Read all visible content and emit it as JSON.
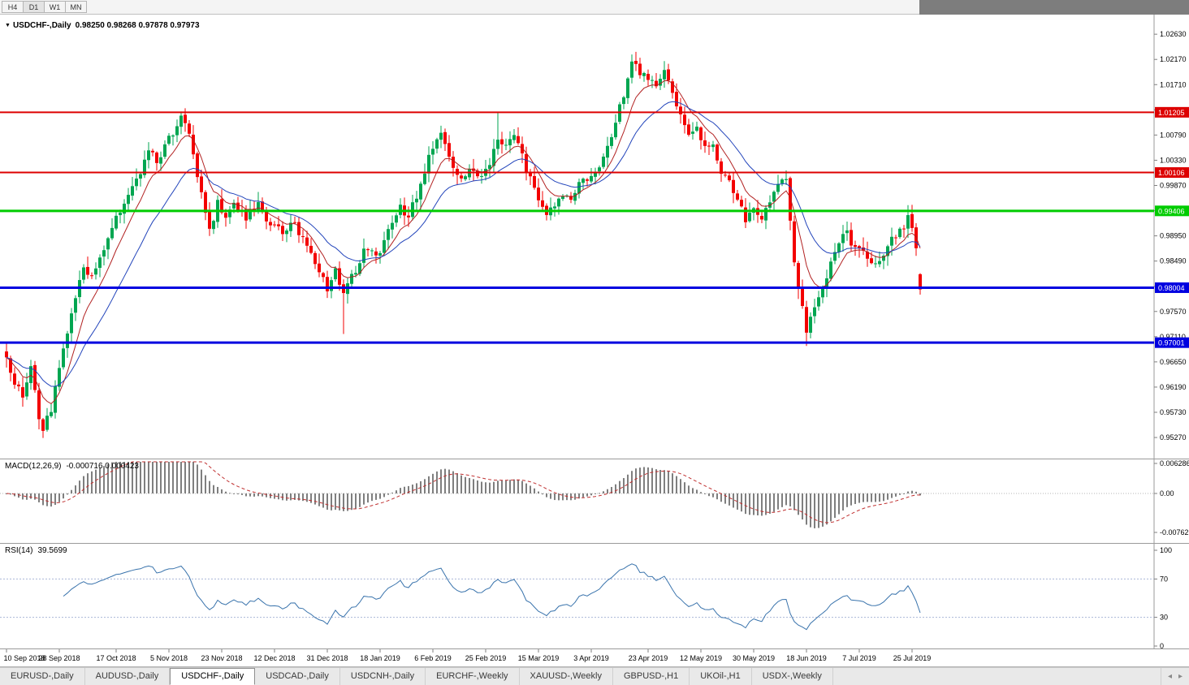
{
  "toolbar": {
    "periods": [
      "H4",
      "D1",
      "W1",
      "MN"
    ],
    "active": "D1"
  },
  "chart": {
    "symbol_title": "USDCHF-,Daily",
    "quote_text": "0.98250 0.98268 0.97878 0.97973"
  },
  "chart_data": {
    "type": "candlestick",
    "title": "USDCHF-,Daily",
    "last_candle": {
      "open": 0.9825,
      "high": 0.98268,
      "low": 0.97878,
      "close": 0.97973
    },
    "levels": [
      {
        "price": 1.01205,
        "label": "1.01205",
        "color": "#dd0000",
        "width": 2
      },
      {
        "price": 1.00106,
        "label": "1.00106",
        "color": "#dd0000",
        "width": 2
      },
      {
        "price": 0.99406,
        "label": "0.99406",
        "color": "#00cc00",
        "width": 3
      },
      {
        "price": 0.98004,
        "label": "0.98004",
        "color": "#0000e0",
        "width": 3
      },
      {
        "price": 0.97001,
        "label": "0.97001",
        "color": "#0000e0",
        "width": 3
      }
    ],
    "price_axis": {
      "top_label": 1.0263,
      "step": 0.0046,
      "label_count": 17,
      "p_top": 1.0281,
      "p_bottom": 0.9493
    },
    "candle_count": 226,
    "price_path": [
      [
        0,
        0.968
      ],
      [
        2,
        0.9625
      ],
      [
        4,
        0.96
      ],
      [
        6,
        0.9655
      ],
      [
        8,
        0.956
      ],
      [
        9,
        0.954
      ],
      [
        11,
        0.958
      ],
      [
        14,
        0.969
      ],
      [
        17,
        0.978
      ],
      [
        19,
        0.9845
      ],
      [
        21,
        0.9815
      ],
      [
        24,
        0.987
      ],
      [
        27,
        0.9925
      ],
      [
        29,
        0.9955
      ],
      [
        31,
        0.9985
      ],
      [
        33,
        1.001
      ],
      [
        35,
        1.0055
      ],
      [
        37,
        1.0025
      ],
      [
        39,
        1.006
      ],
      [
        41,
        1.008
      ],
      [
        43,
        1.011
      ],
      [
        45,
        1.0085
      ],
      [
        47,
        1.0005
      ],
      [
        49,
        0.994
      ],
      [
        50,
        0.9905
      ],
      [
        52,
        0.9955
      ],
      [
        54,
        0.9935
      ],
      [
        56,
        0.995
      ],
      [
        59,
        0.993
      ],
      [
        62,
        0.995
      ],
      [
        65,
        0.9915
      ],
      [
        68,
        0.99
      ],
      [
        71,
        0.992
      ],
      [
        74,
        0.987
      ],
      [
        77,
        0.983
      ],
      [
        79,
        0.98
      ],
      [
        81,
        0.983
      ],
      [
        83,
        0.9785
      ],
      [
        85,
        0.982
      ],
      [
        88,
        0.9865
      ],
      [
        91,
        0.986
      ],
      [
        93,
        0.988
      ],
      [
        95,
        0.992
      ],
      [
        97,
        0.995
      ],
      [
        99,
        0.993
      ],
      [
        101,
        0.997
      ],
      [
        103,
        1.001
      ],
      [
        105,
        1.006
      ],
      [
        107,
        1.0082
      ],
      [
        109,
        1.004
      ],
      [
        111,
        1.001
      ],
      [
        113,
        1.0
      ],
      [
        115,
        1.002
      ],
      [
        117,
        1.0
      ],
      [
        119,
        1.003
      ],
      [
        121,
        1.0078
      ],
      [
        123,
        1.0058
      ],
      [
        125,
        1.0078
      ],
      [
        127,
        1.004
      ],
      [
        129,
        1.0
      ],
      [
        131,
        0.996
      ],
      [
        133,
        0.993
      ],
      [
        135,
        0.995
      ],
      [
        137,
        0.9968
      ],
      [
        139,
        0.9958
      ],
      [
        141,
        1.0
      ],
      [
        143,
        0.999
      ],
      [
        145,
        1.001
      ],
      [
        147,
        1.004
      ],
      [
        149,
        1.0078
      ],
      [
        151,
        1.0128
      ],
      [
        153,
        1.018
      ],
      [
        154,
        1.0215
      ],
      [
        156,
        1.0195
      ],
      [
        158,
        1.0185
      ],
      [
        160,
        1.017
      ],
      [
        162,
        1.0205
      ],
      [
        164,
        1.016
      ],
      [
        166,
        1.011
      ],
      [
        168,
        1.0085
      ],
      [
        170,
        1.009
      ],
      [
        172,
        1.0055
      ],
      [
        174,
        1.006
      ],
      [
        176,
        1.0015
      ],
      [
        178,
        0.9995
      ],
      [
        180,
        0.9962
      ],
      [
        182,
        0.9925
      ],
      [
        184,
        0.995
      ],
      [
        186,
        0.993
      ],
      [
        188,
        0.9958
      ],
      [
        190,
        0.9988
      ],
      [
        192,
        1.0005
      ],
      [
        193,
        0.992
      ],
      [
        194,
        0.985
      ],
      [
        195,
        0.98
      ],
      [
        196,
        0.976
      ],
      [
        197,
        0.9725
      ],
      [
        198,
        0.9745
      ],
      [
        199,
        0.9762
      ],
      [
        201,
        0.98
      ],
      [
        203,
        0.985
      ],
      [
        205,
        0.9888
      ],
      [
        207,
        0.9898
      ],
      [
        209,
        0.9872
      ],
      [
        211,
        0.9862
      ],
      [
        213,
        0.9842
      ],
      [
        215,
        0.9852
      ],
      [
        217,
        0.9878
      ],
      [
        219,
        0.9898
      ],
      [
        221,
        0.9908
      ],
      [
        222,
        0.9928
      ],
      [
        223,
        0.9905
      ],
      [
        224,
        0.9868
      ],
      [
        225,
        0.9797
      ]
    ],
    "wick_events": [
      {
        "i": 9,
        "low": 0.9528
      },
      {
        "i": 43,
        "high": 1.0122
      },
      {
        "i": 83,
        "low": 0.9716
      },
      {
        "i": 121,
        "high": 1.012
      },
      {
        "i": 154,
        "high": 1.0226
      },
      {
        "i": 162,
        "high": 1.0214
      },
      {
        "i": 192,
        "high": 1.0012
      },
      {
        "i": 197,
        "low": 0.9694
      },
      {
        "i": 222,
        "high": 0.994
      }
    ],
    "date_ticks": [
      {
        "i": 0,
        "label": "10 Sep 2018"
      },
      {
        "i": 13,
        "label": "28 Sep 2018"
      },
      {
        "i": 27,
        "label": "17 Oct 2018"
      },
      {
        "i": 40,
        "label": "5 Nov 2018"
      },
      {
        "i": 53,
        "label": "23 Nov 2018"
      },
      {
        "i": 66,
        "label": "12 Dec 2018"
      },
      {
        "i": 79,
        "label": "31 Dec 2018"
      },
      {
        "i": 92,
        "label": "18 Jan 2019"
      },
      {
        "i": 105,
        "label": "6 Feb 2019"
      },
      {
        "i": 118,
        "label": "25 Feb 2019"
      },
      {
        "i": 131,
        "label": "15 Mar 2019"
      },
      {
        "i": 144,
        "label": "3 Apr 2019"
      },
      {
        "i": 158,
        "label": "23 Apr 2019"
      },
      {
        "i": 171,
        "label": "12 May 2019"
      },
      {
        "i": 184,
        "label": "30 May 2019"
      },
      {
        "i": 197,
        "label": "18 Jun 2019"
      },
      {
        "i": 210,
        "label": "7 Jul 2019"
      },
      {
        "i": 223,
        "label": "25 Jul 2019"
      }
    ],
    "moving_averages": [
      {
        "period": 8,
        "color": "#b22222"
      },
      {
        "period": 20,
        "color": "#2244bb"
      }
    ]
  },
  "macd": {
    "label": "MACD(12,26,9)",
    "values_text": "-0.000716 0.000423",
    "axis_labels": [
      "0.006286",
      "0.00",
      "-0.00762"
    ],
    "params": [
      12,
      26,
      9
    ]
  },
  "rsi": {
    "label": "RSI(14)",
    "value_text": "39.5699",
    "axis_labels": [
      "100",
      "70",
      "30",
      "0"
    ],
    "levels": [
      70,
      30
    ],
    "period": 14
  },
  "tabs": {
    "items": [
      "EURUSD-,Daily",
      "AUDUSD-,Daily",
      "USDCHF-,Daily",
      "USDCAD-,Daily",
      "USDCNH-,Daily",
      "EURCHF-,Weekly",
      "XAUUSD-,Weekly",
      "GBPUSD-,H1",
      "UKOil-,H1",
      "USDX-,Weekly"
    ],
    "active": "USDCHF-,Daily"
  },
  "icons": {
    "dropdown": "▼",
    "tab_prev": "◂",
    "tab_next": "▸"
  },
  "colors": {
    "candle_up": "#00a651",
    "candle_down": "#f30000",
    "macd_bar": "#7f7f7f",
    "macd_signal": "#c03030",
    "rsi_line": "#3973ac",
    "axis_text": "#000000",
    "grid_dotted": "#b5b5b5",
    "rsi_level_dotted": "#aab6d8"
  }
}
